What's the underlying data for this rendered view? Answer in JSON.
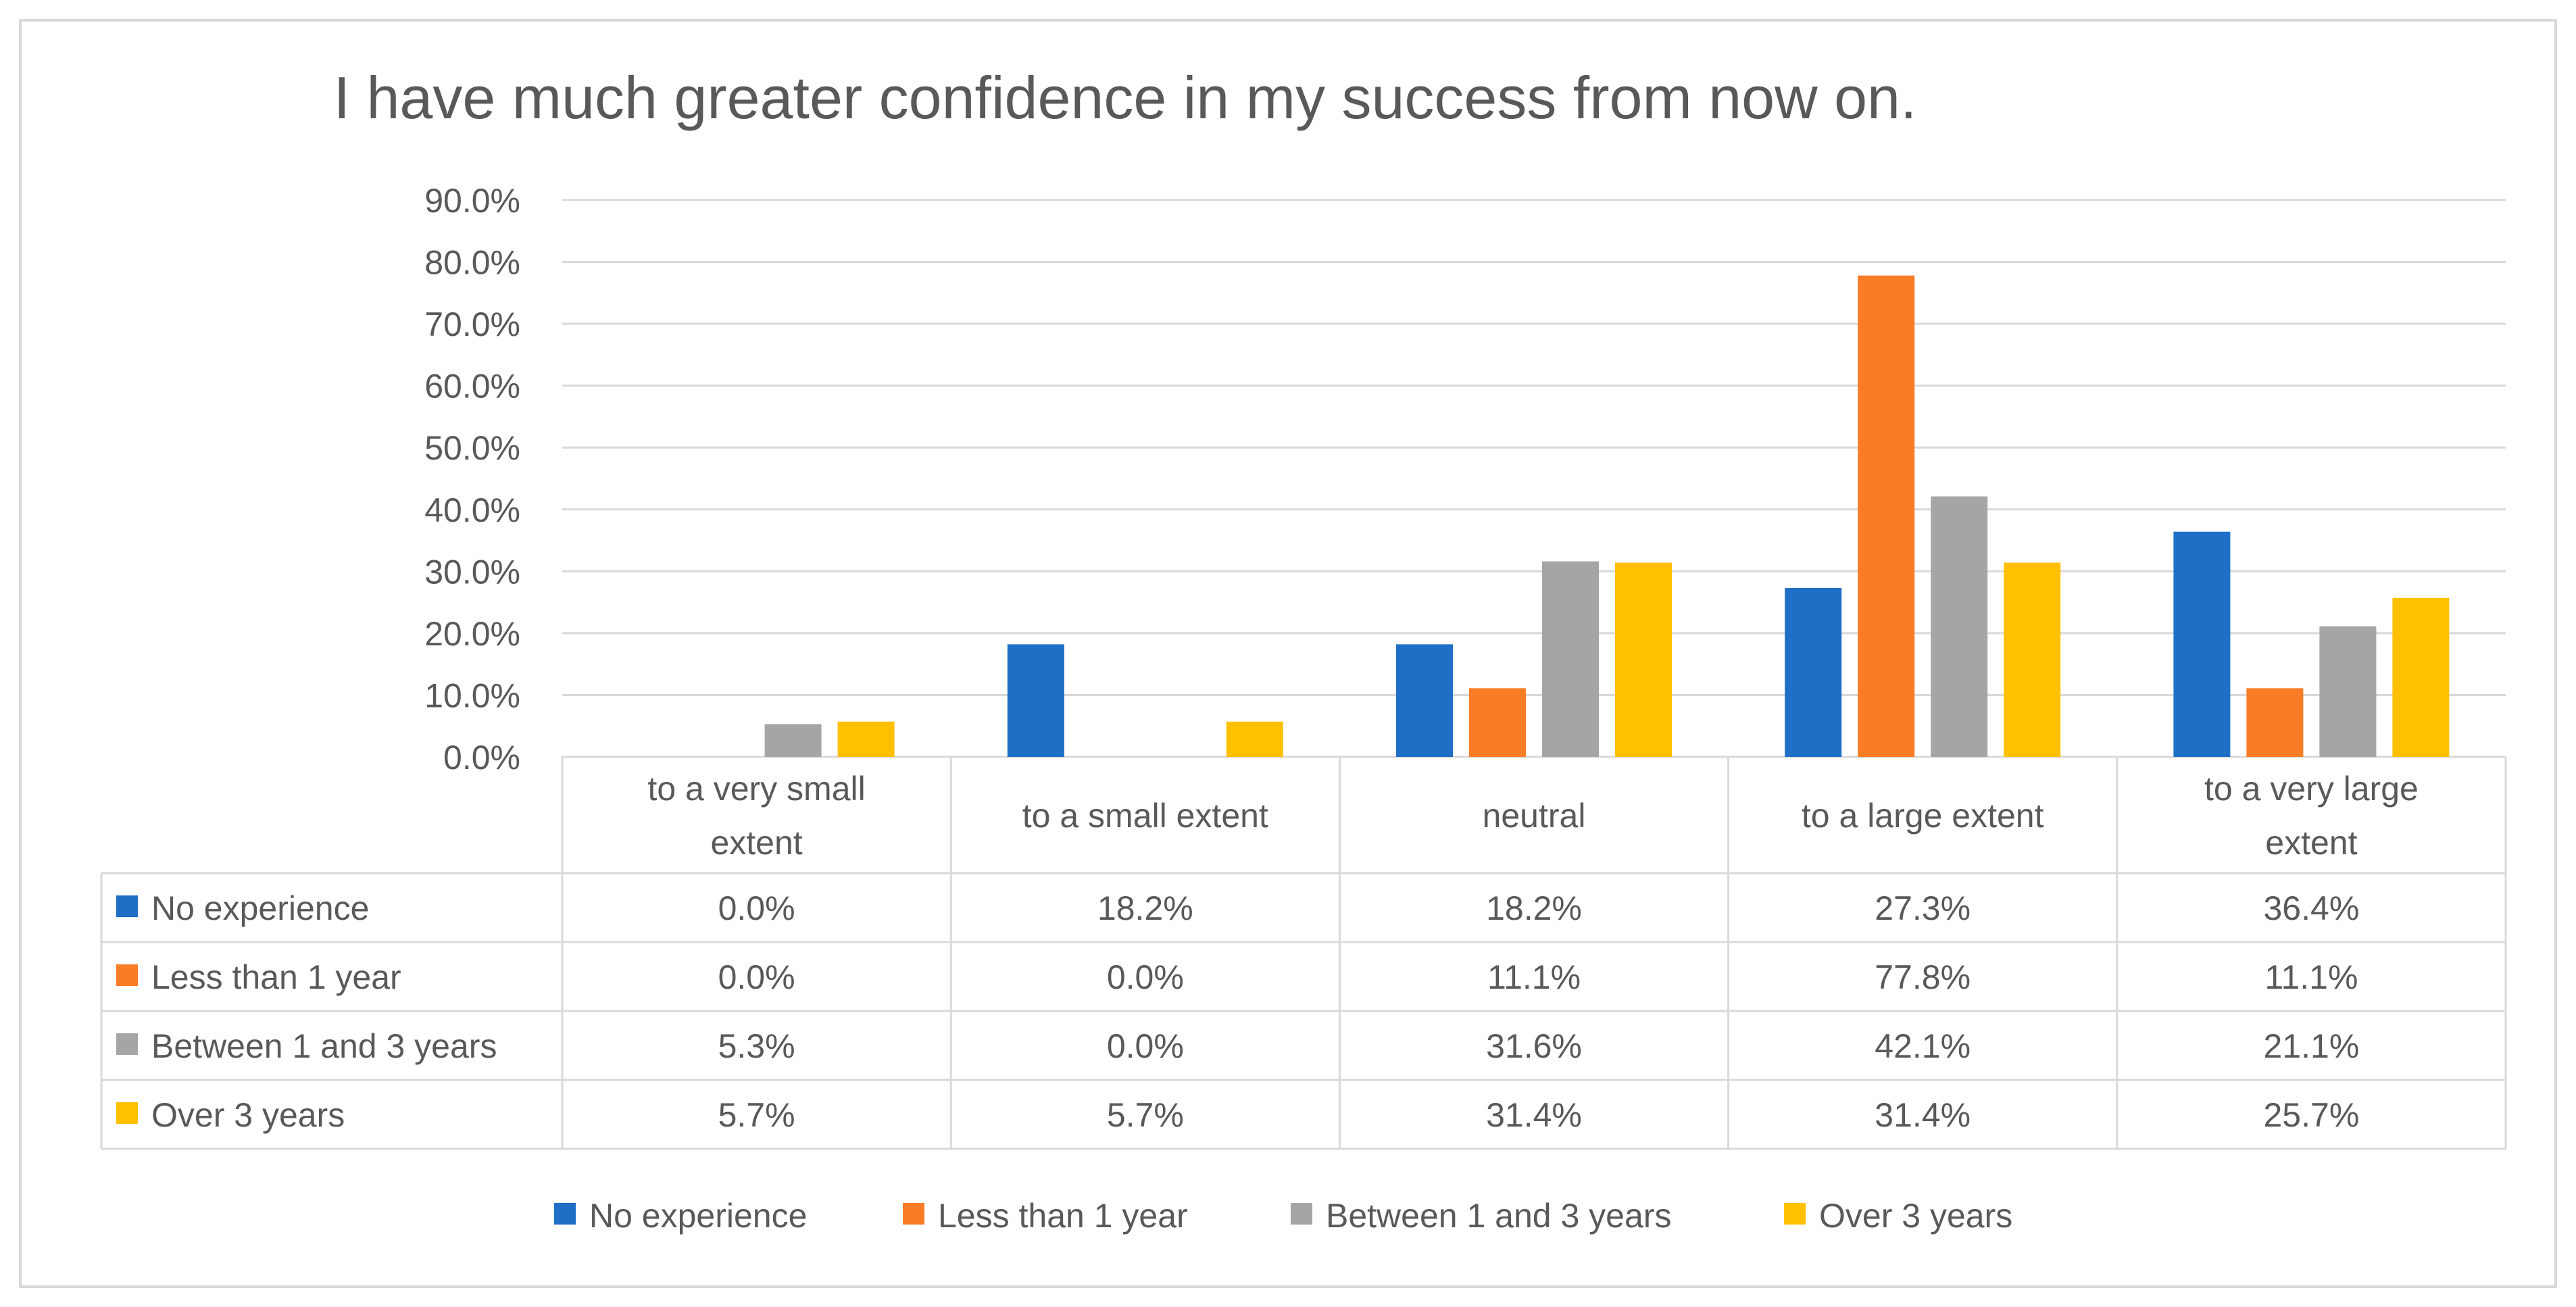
{
  "chart_data": {
    "type": "bar",
    "title": "I have much greater confidence in my success from now on.",
    "xlabel": "",
    "ylabel": "",
    "ylim": [
      0,
      90
    ],
    "yticks": [
      "0.0%",
      "10.0%",
      "20.0%",
      "30.0%",
      "40.0%",
      "50.0%",
      "60.0%",
      "70.0%",
      "80.0%",
      "90.0%"
    ],
    "grid": true,
    "categories": [
      [
        "to a very small",
        "extent"
      ],
      [
        "to a small extent"
      ],
      [
        "neutral"
      ],
      [
        "to a large extent"
      ],
      [
        "to a very large",
        "extent"
      ]
    ],
    "series": [
      {
        "name": "No experience",
        "color": "#1F6FC6",
        "values": [
          0.0,
          18.2,
          18.2,
          27.3,
          36.4
        ],
        "labels": [
          "0.0%",
          "18.2%",
          "18.2%",
          "27.3%",
          "36.4%"
        ]
      },
      {
        "name": "Less than 1 year",
        "color": "#F97C26",
        "values": [
          0.0,
          0.0,
          11.1,
          77.8,
          11.1
        ],
        "labels": [
          "0.0%",
          "0.0%",
          "11.1%",
          "77.8%",
          "11.1%"
        ]
      },
      {
        "name": "Between 1 and 3 years",
        "color": "#A5A5A5",
        "values": [
          5.3,
          0.0,
          31.6,
          42.1,
          21.1
        ],
        "labels": [
          "5.3%",
          "0.0%",
          "31.6%",
          "42.1%",
          "21.1%"
        ]
      },
      {
        "name": "Over 3 years",
        "color": "#FFC000",
        "values": [
          5.7,
          5.7,
          31.4,
          31.4,
          25.7
        ],
        "labels": [
          "5.7%",
          "5.7%",
          "31.4%",
          "31.4%",
          "25.7%"
        ]
      }
    ],
    "legend": "bottom",
    "data_table": true
  }
}
